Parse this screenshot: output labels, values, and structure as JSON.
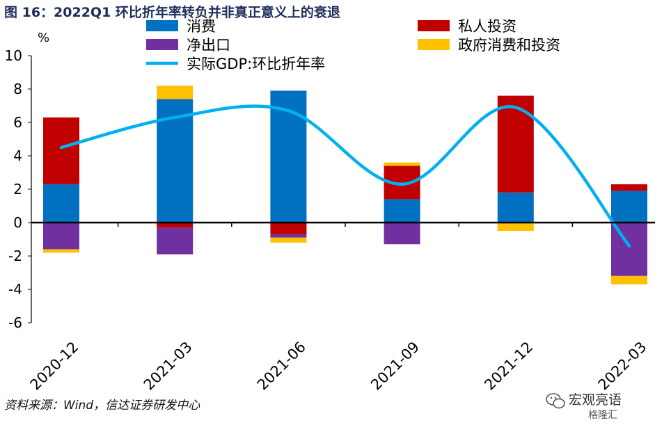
{
  "figure_title": "图 16：2022Q1 环比折年率转负并非真正意义上的衰退",
  "source": "资料来源：Wind，信达证券研发中心",
  "watermark": {
    "text": "宏观亮语",
    "sub": "格隆汇"
  },
  "colors": {
    "consumption": "#0070C0",
    "private_investment": "#C00000",
    "net_exports": "#7030A0",
    "gov": "#FFC000",
    "gdp_line": "#00B0F0",
    "axis": "#000000"
  },
  "chart_data": {
    "type": "bar",
    "stacked": true,
    "unit_label": "%",
    "categories": [
      "2020-12",
      "2021-03",
      "2021-06",
      "2021-09",
      "2021-12",
      "2022-03"
    ],
    "ylim": [
      -6,
      10
    ],
    "yticks": [
      10,
      8,
      6,
      4,
      2,
      0,
      -2,
      -4,
      -6
    ],
    "grid": false,
    "legend_position": "top",
    "series": [
      {
        "name": "消费",
        "key": "consumption",
        "kind": "bar",
        "values": [
          2.3,
          7.4,
          7.9,
          1.4,
          1.8,
          1.9
        ]
      },
      {
        "name": "私人投资",
        "key": "private_investment",
        "kind": "bar",
        "values": [
          4.0,
          -0.3,
          -0.7,
          2.0,
          5.8,
          0.4
        ]
      },
      {
        "name": "净出口",
        "key": "net_exports",
        "kind": "bar",
        "values": [
          -1.6,
          -1.6,
          -0.2,
          -1.3,
          0.0,
          -3.2
        ]
      },
      {
        "name": "政府消费和投资",
        "key": "gov",
        "kind": "bar",
        "values": [
          -0.2,
          0.8,
          -0.3,
          0.2,
          -0.5,
          -0.5
        ]
      },
      {
        "name": "实际GDP:环比折年率",
        "key": "gdp_line",
        "kind": "line",
        "values": [
          4.5,
          6.3,
          6.7,
          2.3,
          6.9,
          -1.4
        ]
      }
    ]
  }
}
